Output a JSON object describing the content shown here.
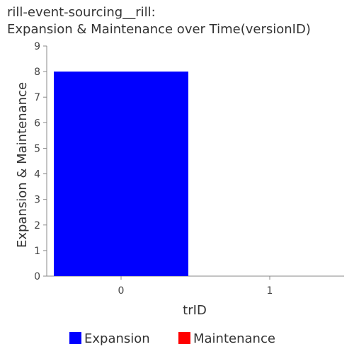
{
  "chart_data": {
    "type": "bar",
    "title_lines": [
      "rill-event-sourcing__rill:",
      "Expansion & Maintenance over Time(versionID)"
    ],
    "xlabel": "trID",
    "ylabel": "Expansion & Maintenance",
    "categories": [
      "0",
      "1"
    ],
    "series": [
      {
        "name": "Expansion",
        "color": "#0000ff",
        "values": [
          8,
          0
        ]
      },
      {
        "name": "Maintenance",
        "color": "#ff0000",
        "values": [
          0,
          0
        ]
      }
    ],
    "ylim": [
      0,
      9
    ],
    "yticks": [
      0,
      1,
      2,
      3,
      4,
      5,
      6,
      7,
      8,
      9
    ],
    "grid": false,
    "legend_position": "bottom"
  }
}
